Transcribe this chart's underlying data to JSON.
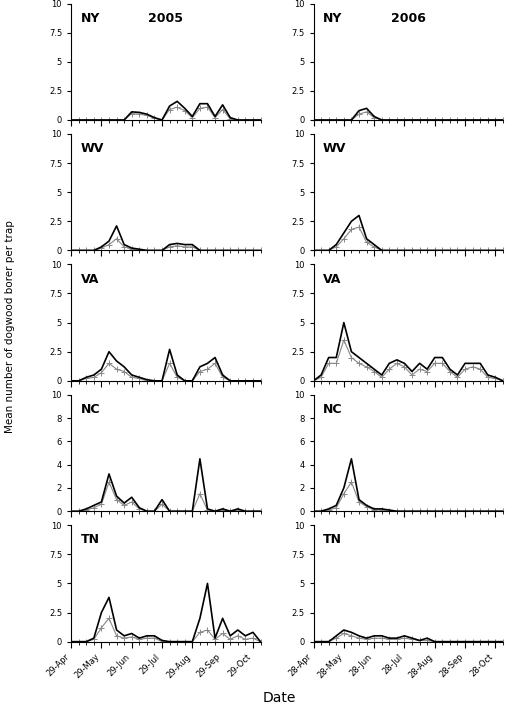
{
  "states": [
    "NY",
    "WV",
    "VA",
    "NC",
    "TN"
  ],
  "years": [
    "2005",
    "2006"
  ],
  "x_ticks_2005": [
    "29-Apr",
    "29-May",
    "29-Jun",
    "29-Jul",
    "29-Aug",
    "29-Sep",
    "29-Oct"
  ],
  "x_ticks_2006": [
    "28-Apr",
    "28-May",
    "28-Jun",
    "28-Jul",
    "28-Aug",
    "28-Sep",
    "28-Oct"
  ],
  "yticks": {
    "NY": [
      0,
      2.5,
      5,
      7.5,
      10
    ],
    "WV": [
      0,
      2.5,
      5,
      7.5,
      10
    ],
    "VA": [
      0,
      2.5,
      5,
      7.5,
      10
    ],
    "NC": [
      0,
      2,
      4,
      6,
      8,
      10
    ],
    "TN": [
      0,
      2.5,
      5,
      7.5,
      10
    ]
  },
  "ylims": {
    "NY": [
      0,
      10
    ],
    "WV": [
      0,
      10
    ],
    "VA": [
      0,
      10
    ],
    "NC": [
      0,
      10
    ],
    "TN": [
      0,
      10
    ]
  },
  "data_2005": {
    "NY": {
      "line1": [
        0,
        0,
        0,
        0,
        0,
        0,
        0,
        0,
        0.7,
        0.65,
        0.5,
        0.2,
        0,
        1.2,
        1.6,
        1.0,
        0.3,
        1.4,
        1.4,
        0.3,
        1.3,
        0.2,
        0,
        0,
        0,
        0
      ],
      "line2": [
        0,
        0,
        0,
        0,
        0,
        0,
        0,
        0,
        0.55,
        0.5,
        0.4,
        0.15,
        0,
        0.9,
        1.1,
        0.8,
        0.2,
        1.0,
        1.1,
        0.2,
        0.9,
        0.1,
        0,
        0,
        0,
        0
      ]
    },
    "WV": {
      "line1": [
        0,
        0,
        0,
        0,
        0.3,
        0.8,
        2.1,
        0.5,
        0.2,
        0.1,
        0,
        0,
        0,
        0.5,
        0.6,
        0.5,
        0.5,
        0,
        0,
        0,
        0,
        0,
        0,
        0,
        0,
        0
      ],
      "line2": [
        0,
        0,
        0,
        0,
        0.2,
        0.5,
        1.0,
        0.3,
        0.1,
        0,
        0,
        0,
        0,
        0.3,
        0.4,
        0.3,
        0.3,
        0,
        0,
        0,
        0,
        0,
        0,
        0,
        0,
        0
      ]
    },
    "VA": {
      "line1": [
        0,
        0,
        0.3,
        0.5,
        1.0,
        2.5,
        1.7,
        1.2,
        0.5,
        0.3,
        0.1,
        0,
        0,
        2.7,
        0.5,
        0,
        0,
        1.2,
        1.5,
        2.0,
        0.5,
        0,
        0,
        0,
        0,
        0
      ],
      "line2": [
        0,
        0,
        0.2,
        0.3,
        0.7,
        1.5,
        1.0,
        0.8,
        0.3,
        0.2,
        0,
        0,
        0,
        1.5,
        0.3,
        0,
        0,
        0.8,
        1.0,
        1.5,
        0.3,
        0,
        0,
        0,
        0,
        0
      ]
    },
    "NC": {
      "line1": [
        0,
        0,
        0.2,
        0.5,
        0.8,
        3.2,
        1.3,
        0.7,
        1.2,
        0.3,
        0,
        0,
        1.0,
        0,
        0,
        0,
        0,
        4.5,
        0.2,
        0,
        0.2,
        0,
        0.2,
        0,
        0,
        0
      ],
      "line2": [
        0,
        0,
        0.1,
        0.3,
        0.6,
        2.5,
        1.0,
        0.5,
        0.8,
        0.2,
        0,
        0,
        0.6,
        0,
        0,
        0,
        0,
        1.5,
        0.1,
        0,
        0.1,
        0,
        0.1,
        0,
        0,
        0
      ]
    },
    "TN": {
      "line1": [
        0,
        0,
        0,
        0.3,
        2.5,
        3.8,
        1.0,
        0.5,
        0.7,
        0.3,
        0.5,
        0.5,
        0.1,
        0,
        0,
        0,
        0,
        2.0,
        5.0,
        0.3,
        2.0,
        0.5,
        1.0,
        0.5,
        0.8,
        0
      ],
      "line2": [
        0,
        0,
        0,
        0.2,
        1.2,
        2.0,
        0.5,
        0.3,
        0.4,
        0.2,
        0.3,
        0.3,
        0,
        0,
        0,
        0,
        0,
        0.8,
        1.0,
        0.2,
        0.7,
        0.2,
        0.5,
        0.2,
        0.3,
        0
      ]
    }
  },
  "data_2006": {
    "NY": {
      "line1": [
        0,
        0,
        0,
        0,
        0,
        0,
        0.8,
        1.0,
        0.3,
        0,
        0,
        0,
        0,
        0,
        0,
        0,
        0,
        0,
        0,
        0,
        0,
        0,
        0,
        0,
        0,
        0
      ],
      "line2": [
        0,
        0,
        0,
        0,
        0,
        0,
        0.5,
        0.7,
        0.2,
        0,
        0,
        0,
        0,
        0,
        0,
        0,
        0,
        0,
        0,
        0,
        0,
        0,
        0,
        0,
        0,
        0
      ]
    },
    "WV": {
      "line1": [
        0,
        0,
        0,
        0.5,
        1.5,
        2.5,
        3.0,
        1.0,
        0.5,
        0,
        0,
        0,
        0,
        0,
        0,
        0,
        0,
        0,
        0,
        0,
        0,
        0,
        0,
        0,
        0,
        0
      ],
      "line2": [
        0,
        0,
        0,
        0.3,
        1.0,
        1.8,
        2.0,
        0.7,
        0.3,
        0,
        0,
        0,
        0,
        0,
        0,
        0,
        0,
        0,
        0,
        0,
        0,
        0,
        0,
        0,
        0,
        0
      ]
    },
    "VA": {
      "line1": [
        0,
        0.5,
        2.0,
        2.0,
        5.0,
        2.5,
        2.0,
        1.5,
        1.0,
        0.5,
        1.5,
        1.8,
        1.5,
        0.8,
        1.5,
        1.0,
        2.0,
        2.0,
        1.0,
        0.5,
        1.5,
        1.5,
        1.5,
        0.5,
        0.3,
        0
      ],
      "line2": [
        0,
        0.3,
        1.5,
        1.5,
        3.5,
        2.0,
        1.5,
        1.2,
        0.8,
        0.3,
        1.0,
        1.5,
        1.2,
        0.5,
        1.0,
        0.8,
        1.5,
        1.5,
        0.8,
        0.3,
        1.0,
        1.2,
        1.0,
        0.3,
        0.2,
        0
      ]
    },
    "NC": {
      "line1": [
        0,
        0,
        0.2,
        0.5,
        2.0,
        4.5,
        1.0,
        0.5,
        0.2,
        0.2,
        0.1,
        0,
        0,
        0,
        0,
        0,
        0,
        0,
        0,
        0,
        0,
        0,
        0,
        0,
        0,
        0
      ],
      "line2": [
        0,
        0,
        0.1,
        0.3,
        1.5,
        2.5,
        0.8,
        0.4,
        0.1,
        0.1,
        0,
        0,
        0,
        0,
        0,
        0,
        0,
        0,
        0,
        0,
        0,
        0,
        0,
        0,
        0,
        0
      ]
    },
    "TN": {
      "line1": [
        0,
        0,
        0,
        0.5,
        1.0,
        0.8,
        0.5,
        0.3,
        0.5,
        0.5,
        0.3,
        0.3,
        0.5,
        0.3,
        0.1,
        0.3,
        0,
        0,
        0,
        0,
        0,
        0,
        0,
        0,
        0,
        0
      ],
      "line2": [
        0,
        0,
        0,
        0.3,
        0.7,
        0.5,
        0.3,
        0.2,
        0.3,
        0.3,
        0.2,
        0.2,
        0.3,
        0.2,
        0.1,
        0.1,
        0,
        0,
        0,
        0,
        0,
        0,
        0,
        0,
        0,
        0
      ]
    }
  },
  "ylabel": "Mean number of dogwood borer per trap",
  "xlabel": "Date",
  "line1_color": "#000000",
  "line2_color": "#888888",
  "linewidth1": 1.2,
  "linewidth2": 0.8
}
